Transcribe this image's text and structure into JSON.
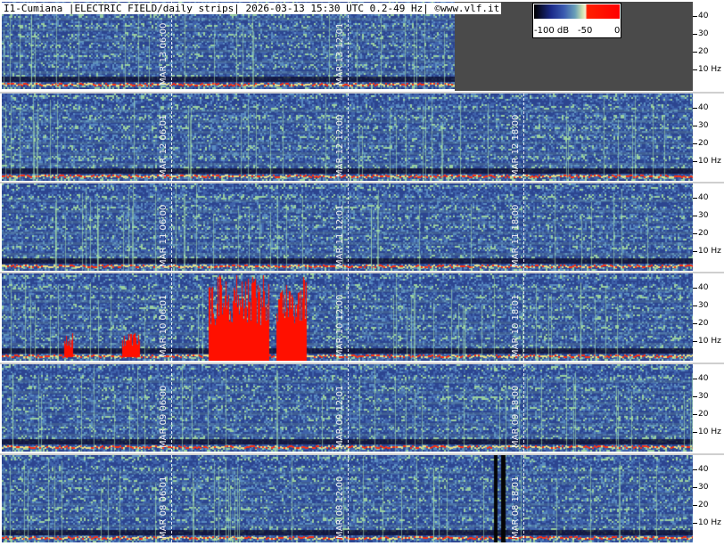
{
  "header": {
    "title": "I1-Cumiana |ELECTRIC FIELD/daily strips| 2026-03-13 15:30 UTC 0.2-49 Hz| ©www.vlf.it"
  },
  "colorbar": {
    "label_min": "-100 dB",
    "label_mid": "-50",
    "label_max": "0"
  },
  "freq_axis": {
    "labels": [
      "40",
      "30",
      "20",
      "10 Hz"
    ]
  },
  "strips": [
    {
      "date_label": "MAR 13",
      "markers": [
        {
          "time": "06:00",
          "label": "MAR 13  06:00"
        },
        {
          "time": "12:01",
          "label": "MAR 13  12:01"
        }
      ],
      "has_partial_data": true
    },
    {
      "date_label": "MAR 12",
      "markers": [
        {
          "time": "06:01",
          "label": "MAR 12  06:01"
        },
        {
          "time": "12:00",
          "label": "MAR 12  12:00"
        },
        {
          "time": "18:00",
          "label": "MAR 12  18:00"
        }
      ]
    },
    {
      "date_label": "MAR 11",
      "markers": [
        {
          "time": "06:00",
          "label": "MAR 11  06:00"
        },
        {
          "time": "12:01",
          "label": "MAR 11  12:01"
        },
        {
          "time": "18:00",
          "label": "MAR 11  18:00"
        }
      ]
    },
    {
      "date_label": "MAR 10",
      "markers": [
        {
          "time": "06:01",
          "label": "MAR 10  06:01"
        },
        {
          "time": "12:00",
          "label": "MAR 10  12:00"
        },
        {
          "time": "18:01",
          "label": "MAR 10  18:01"
        }
      ]
    },
    {
      "date_label": "MAR 09",
      "markers": [
        {
          "time": "06:00",
          "label": "MAR 09  06:00"
        },
        {
          "time": "12:01",
          "label": "MAR 09  12:01"
        },
        {
          "time": "18:00",
          "label": "MAR 09  18:00"
        }
      ]
    },
    {
      "date_label": "MAR 08",
      "markers": [
        {
          "time": "06:01",
          "label": "MAR 08  06:01"
        },
        {
          "time": "12:00",
          "label": "MAR 08  12:00"
        },
        {
          "time": "18:01",
          "label": "MAR 08  18:01"
        }
      ]
    }
  ],
  "colors": {
    "background_blue": "#2c4a96",
    "noise_green": "#8fcf9a",
    "saturation_red": "#ff1000",
    "no_data": "#4a4a4a"
  }
}
